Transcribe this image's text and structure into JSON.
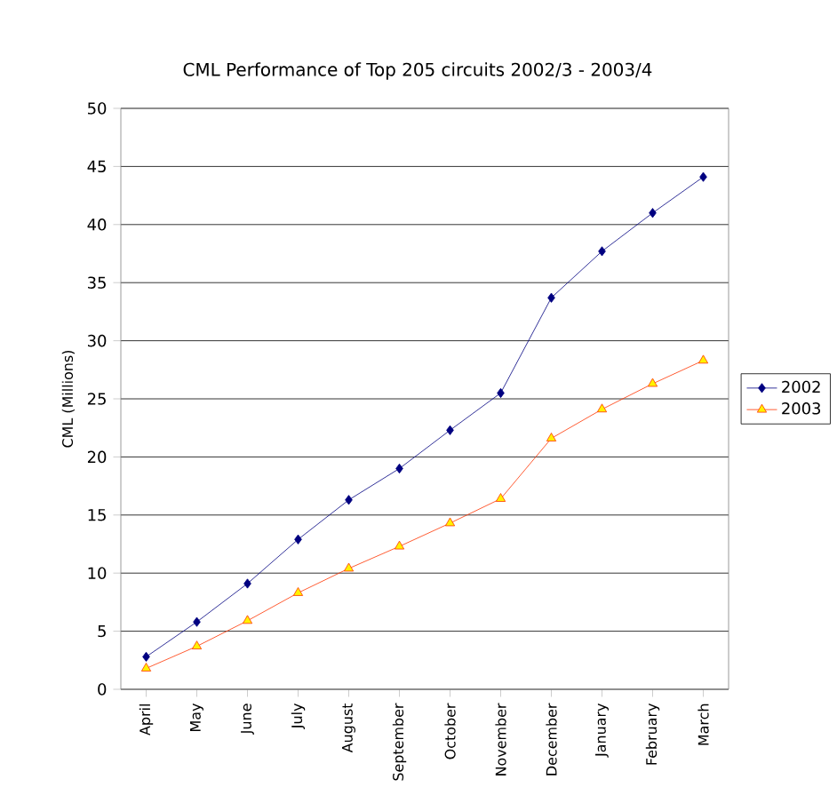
{
  "chart_data": {
    "type": "line",
    "title": "CML Performance of Top 205 circuits 2002/3 - 2003/4",
    "ylabel": "CML (Millions)",
    "categories": [
      "April",
      "May",
      "June",
      "July",
      "August",
      "September",
      "October",
      "November",
      "December",
      "January",
      "February",
      "March"
    ],
    "series": [
      {
        "name": "2002",
        "color": "#000080",
        "marker": "diamond",
        "values": [
          2.8,
          5.8,
          9.1,
          12.9,
          16.3,
          19.0,
          22.3,
          25.5,
          33.7,
          37.7,
          41.0,
          44.1
        ]
      },
      {
        "name": "2003",
        "color": "#ff3300",
        "marker": "triangle",
        "values": [
          1.8,
          3.7,
          5.9,
          8.3,
          10.4,
          12.3,
          14.3,
          16.4,
          21.6,
          24.1,
          26.3,
          28.3
        ]
      }
    ],
    "ylim": [
      0,
      50
    ],
    "yticks": [
      0,
      5,
      10,
      15,
      20,
      25,
      30,
      35,
      40,
      45,
      50
    ],
    "grid": "y",
    "legend": "right",
    "line_style": "solid"
  }
}
